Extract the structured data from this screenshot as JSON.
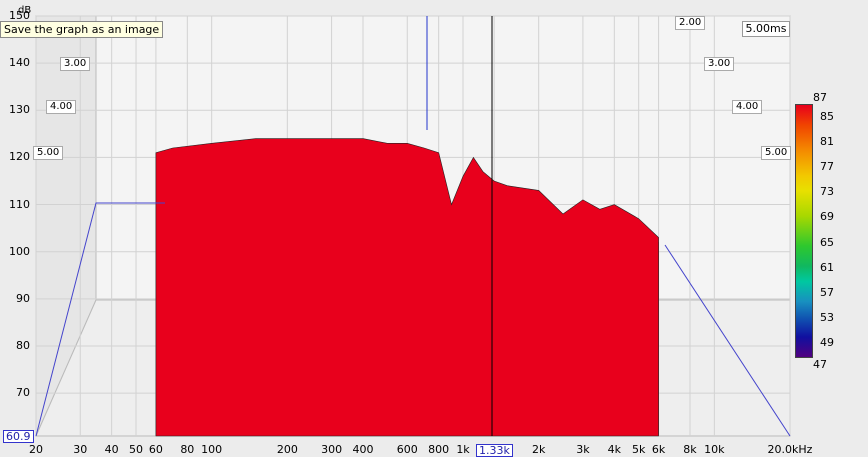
{
  "tooltip": "Save the graph as an image",
  "delay_label": "5.00ms",
  "y_unit": "dB",
  "cursor_x_label": "1.33k",
  "cursor_y_label": "60.9",
  "colorbar": {
    "top": "87",
    "bottom": "47",
    "ticks": [
      "85",
      "81",
      "77",
      "73",
      "69",
      "65",
      "61",
      "57",
      "53",
      "49"
    ],
    "colors": [
      "#e8001c",
      "#f04400",
      "#f48a00",
      "#f2c800",
      "#a8d800",
      "#2ec82e",
      "#10b860",
      "#00c8a0",
      "#1890c0",
      "#1050b0",
      "#500080"
    ]
  },
  "depth_labels_left": [
    "3.00",
    "4.00",
    "5.00"
  ],
  "depth_labels_right": [
    "2.00",
    "3.00",
    "4.00",
    "5.00"
  ],
  "chart_data": {
    "type": "area",
    "subtype": "waterfall",
    "xlabel": "",
    "ylabel": "dB",
    "x_scale": "log",
    "xlim": [
      20,
      20000
    ],
    "ylim": [
      60.9,
      150
    ],
    "zlim_ms": [
      0,
      5.0
    ],
    "x_ticks": [
      "20",
      "30",
      "40",
      "50",
      "60",
      "80",
      "100",
      "200",
      "300",
      "400",
      "600",
      "800",
      "1k",
      "1.33k",
      "2k",
      "3k",
      "4k",
      "5k",
      "6k",
      "8k",
      "10k",
      "20.0kHz"
    ],
    "y_ticks": [
      70,
      80,
      90,
      100,
      110,
      120,
      130,
      140,
      150
    ],
    "z_ticks": [
      "2.00",
      "3.00",
      "4.00",
      "5.00"
    ],
    "cursor_x_hz": 1330,
    "cursor_y_db": 60.9,
    "color_scale_db": [
      47,
      87
    ],
    "series": [
      {
        "x": [
          60,
          70,
          100,
          150,
          200,
          300,
          400,
          500,
          600,
          700,
          800,
          900,
          1000,
          1100,
          1200,
          1330,
          1500,
          2000,
          2500,
          3000,
          3500,
          4000,
          5000,
          6000
        ],
        "values": [
          121,
          122,
          123,
          124,
          124,
          124,
          124,
          123,
          123,
          122,
          121,
          110,
          116,
          120,
          117,
          115,
          114,
          113,
          108,
          111,
          109,
          110,
          107,
          103
        ]
      }
    ]
  }
}
